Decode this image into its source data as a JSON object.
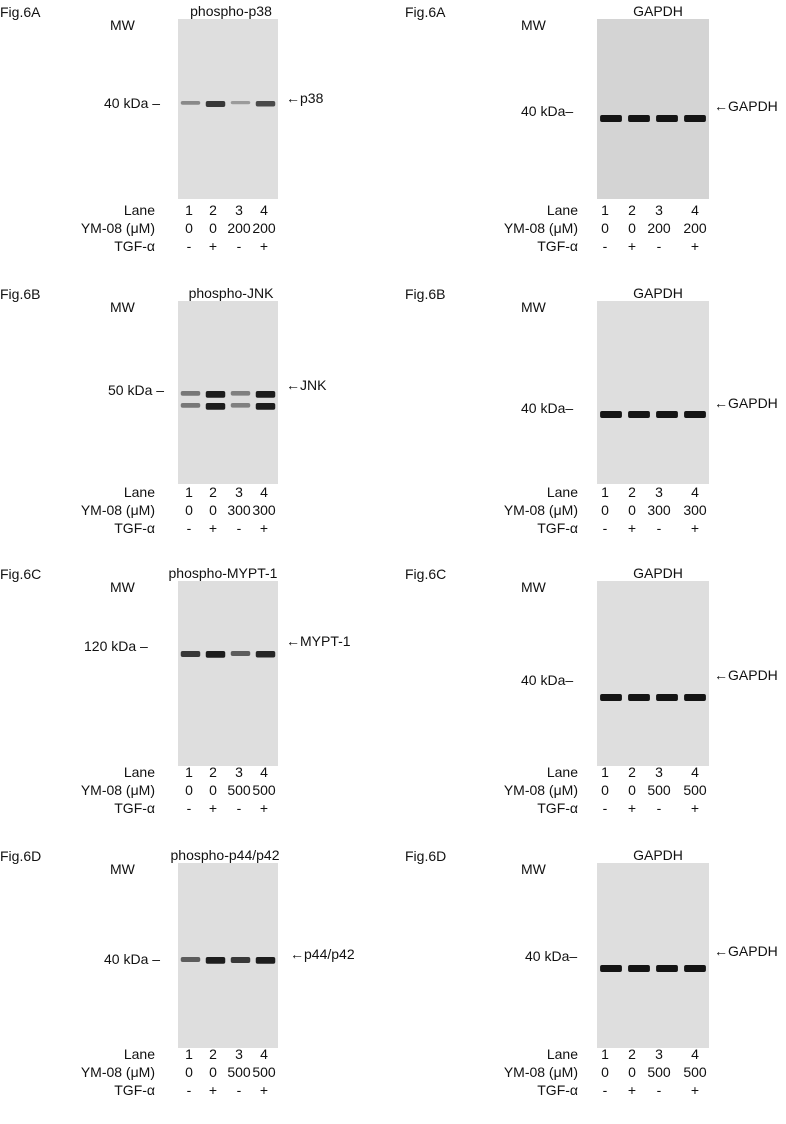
{
  "panels": [
    {
      "fig": "Fig.6A",
      "mw_label": "MW",
      "title": "phospho-p38",
      "marker": "40 kDa –",
      "band_label": "←p38",
      "row_labels": [
        "Lane",
        "YM-08 (μM)",
        "TGF-α"
      ],
      "lanes": [
        "1",
        "2",
        "3",
        "4"
      ],
      "doses": [
        "0",
        "0",
        "200",
        "200"
      ],
      "tgf": [
        "-",
        "+",
        "-",
        "+"
      ],
      "band_intensity": [
        0.35,
        0.8,
        0.25,
        0.7
      ]
    },
    {
      "fig": "Fig.6A",
      "mw_label": "MW",
      "title": "GAPDH",
      "marker": "40 kDa–",
      "band_label": "←GAPDH",
      "row_labels": [
        "Lane",
        "YM-08 (μM)",
        "TGF-α"
      ],
      "lanes": [
        "1",
        "2",
        "3",
        "4"
      ],
      "doses": [
        "0",
        "0",
        "200",
        "200"
      ],
      "tgf": [
        "-",
        "+",
        "-",
        "+"
      ],
      "band_intensity": [
        1,
        1,
        1,
        1
      ]
    },
    {
      "fig": "Fig.6B",
      "mw_label": "MW",
      "title": "phospho-JNK",
      "marker": "50 kDa –",
      "band_label": "←JNK",
      "row_labels": [
        "Lane",
        "YM-08 (μM)",
        "TGF-α"
      ],
      "lanes": [
        "1",
        "2",
        "3",
        "4"
      ],
      "doses": [
        "0",
        "0",
        "300",
        "300"
      ],
      "tgf": [
        "-",
        "+",
        "-",
        "+"
      ],
      "band_intensity": [
        0.45,
        0.95,
        0.4,
        0.95
      ]
    },
    {
      "fig": "Fig.6B",
      "mw_label": "MW",
      "title": "GAPDH",
      "marker": "40 kDa–",
      "band_label": "←GAPDH",
      "row_labels": [
        "Lane",
        "YM-08 (μM)",
        "TGF-α"
      ],
      "lanes": [
        "1",
        "2",
        "3",
        "4"
      ],
      "doses": [
        "0",
        "0",
        "300",
        "300"
      ],
      "tgf": [
        "-",
        "+",
        "-",
        "+"
      ],
      "band_intensity": [
        1,
        1,
        1,
        1
      ]
    },
    {
      "fig": "Fig.6C",
      "mw_label": "MW",
      "title": "phospho-MYPT-1",
      "marker": "120 kDa –",
      "band_label": "←MYPT-1",
      "row_labels": [
        "Lane",
        "YM-08 (μM)",
        "TGF-α"
      ],
      "lanes": [
        "1",
        "2",
        "3",
        "4"
      ],
      "doses": [
        "0",
        "0",
        "500",
        "500"
      ],
      "tgf": [
        "-",
        "+",
        "-",
        "+"
      ],
      "band_intensity": [
        0.8,
        0.95,
        0.6,
        0.9
      ]
    },
    {
      "fig": "Fig.6C",
      "mw_label": "MW",
      "title": "GAPDH",
      "marker": "40 kDa–",
      "band_label": "←GAPDH",
      "row_labels": [
        "Lane",
        "YM-08 (μM)",
        "TGF-α"
      ],
      "lanes": [
        "1",
        "2",
        "3",
        "4"
      ],
      "doses": [
        "0",
        "0",
        "500",
        "500"
      ],
      "tgf": [
        "-",
        "+",
        "-",
        "+"
      ],
      "band_intensity": [
        1,
        1,
        1,
        1
      ]
    },
    {
      "fig": "Fig.6D",
      "mw_label": "MW",
      "title": "phospho-p44/p42",
      "marker": "40 kDa –",
      "band_label": "←p44/p42",
      "row_labels": [
        "Lane",
        "YM-08 (μM)",
        "TGF-α"
      ],
      "lanes": [
        "1",
        "2",
        "3",
        "4"
      ],
      "doses": [
        "0",
        "0",
        "500",
        "500"
      ],
      "tgf": [
        "-",
        "+",
        "-",
        "+"
      ],
      "band_intensity": [
        0.6,
        0.95,
        0.8,
        0.95
      ]
    },
    {
      "fig": "Fig.6D",
      "mw_label": "MW",
      "title": "GAPDH",
      "marker": "40 kDa–",
      "band_label": "←GAPDH",
      "row_labels": [
        "Lane",
        "YM-08 (μM)",
        "TGF-α"
      ],
      "lanes": [
        "1",
        "2",
        "3",
        "4"
      ],
      "doses": [
        "0",
        "0",
        "500",
        "500"
      ],
      "tgf": [
        "-",
        "+",
        "-",
        "+"
      ],
      "band_intensity": [
        1,
        1,
        1,
        1
      ]
    }
  ]
}
